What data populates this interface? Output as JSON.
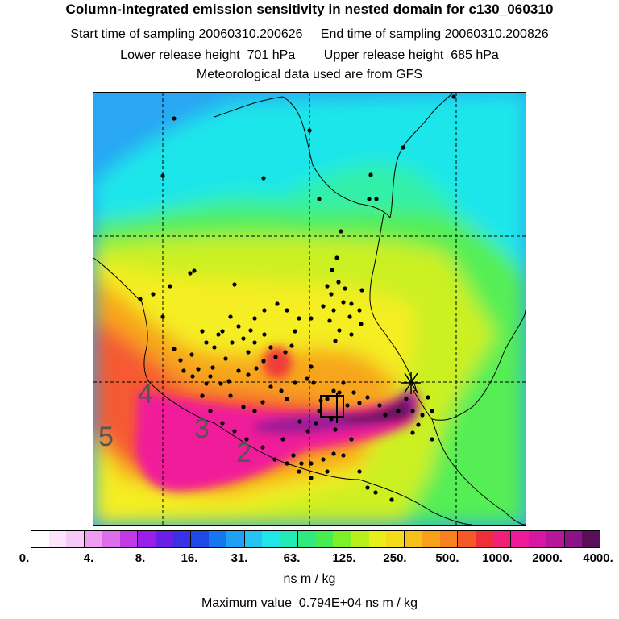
{
  "header": {
    "title": "Column-integrated emission sensitivity in nested domain for c130_060310",
    "line1": "Start time of sampling 20060310.200626     End time of sampling 20060310.200826",
    "line2": "Lower release height  701 hPa        Upper release height  685 hPa",
    "line3": "Meteorological data used are from GFS"
  },
  "map": {
    "contour_labels": [
      "4",
      "5",
      "3",
      "2"
    ],
    "colors": {
      "blue": "#2aa7f2",
      "cyan": "#1fe6ea",
      "aqua_green": "#33f0a8",
      "green": "#55ee55",
      "yellow_green": "#ccf022",
      "yellow": "#f4ee22",
      "orange": "#f7a51c",
      "red_orange": "#f55a30",
      "magenta": "#f01f9a",
      "purple": "#9a1e96",
      "dark_purple": "#5a1258",
      "coast": "#000000",
      "dots": "#000000"
    }
  },
  "colorbar": {
    "colors": [
      "#ffffff",
      "#fde3fb",
      "#f7c9f6",
      "#ee9df0",
      "#dd6de8",
      "#c23ae6",
      "#9b1de8",
      "#6a1ee6",
      "#3a30e6",
      "#1f49e6",
      "#1577ef",
      "#21a0f3",
      "#24c3f1",
      "#1fe6e8",
      "#22e9b6",
      "#30ea7f",
      "#46ec50",
      "#7df02a",
      "#b9f01c",
      "#e6ef1c",
      "#f4dc1b",
      "#f6c01b",
      "#f7a11b",
      "#f7801f",
      "#f45926",
      "#f02e3a",
      "#f01f78",
      "#ee1a99",
      "#d717a1",
      "#b5169a",
      "#8c1287",
      "#5a0f58"
    ],
    "ticks": [
      "0.",
      "4.",
      "8.",
      "16.",
      "31.",
      "63.",
      "125.",
      "250.",
      "500.",
      "1000.",
      "2000.",
      "4000."
    ],
    "units": "ns m / kg"
  },
  "footer": {
    "max_value": "Maximum value  0.794E+04 ns m / kg"
  }
}
